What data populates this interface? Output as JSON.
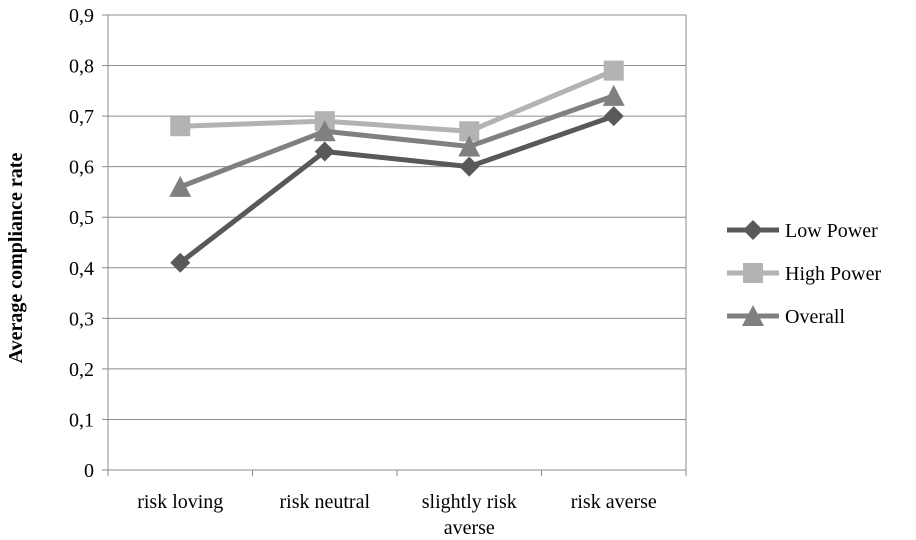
{
  "chart_data": {
    "type": "line",
    "categories": [
      [
        "risk loving"
      ],
      [
        "risk neutral"
      ],
      [
        "slightly risk",
        "averse"
      ],
      [
        "risk averse"
      ]
    ],
    "series": [
      {
        "name": "Low Power",
        "values": [
          0.41,
          0.63,
          0.6,
          0.7
        ],
        "color": "#595959",
        "marker": "diamond"
      },
      {
        "name": "High Power",
        "values": [
          0.68,
          0.69,
          0.67,
          0.79
        ],
        "color": "#b3b3b3",
        "marker": "square"
      },
      {
        "name": "Overall",
        "values": [
          0.56,
          0.67,
          0.64,
          0.74
        ],
        "color": "#808080",
        "marker": "triangle"
      }
    ],
    "xlabel": "",
    "ylabel": "Average compliance rate",
    "ylim": [
      0,
      0.9
    ],
    "yticks": [
      "0",
      "0,1",
      "0,2",
      "0,3",
      "0,4",
      "0,5",
      "0,6",
      "0,7",
      "0,8",
      "0,9"
    ],
    "grid": true,
    "legend": "right"
  }
}
